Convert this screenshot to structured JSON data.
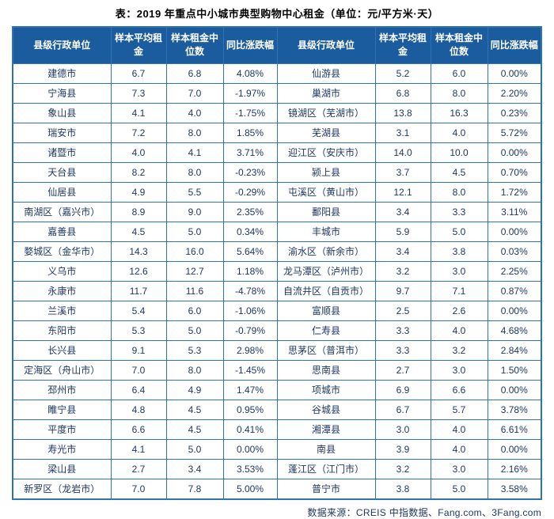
{
  "title": "表：2019 年重点中小城市典型购物中心租金（单位：元/平方米·天）",
  "source": "数据来源：CREIS 中指数据、Fang.com、3Fang.com",
  "colors": {
    "header_bg": "#1b5c9e",
    "border": "#2e74b5",
    "cell_text": "#1f3864",
    "header_text": "#ffffff"
  },
  "chart_data": {
    "type": "table",
    "title": "2019 年重点中小城市典型购物中心租金",
    "unit": "元/平方米·天",
    "columns": [
      "县级行政单位",
      "样本平均租金",
      "样本租金中位数",
      "同比涨跌幅"
    ],
    "left_rows": [
      [
        "建德市",
        "6.7",
        "6.8",
        "4.08%"
      ],
      [
        "宁海县",
        "7.3",
        "7.0",
        "-1.97%"
      ],
      [
        "象山县",
        "4.1",
        "4.0",
        "-1.75%"
      ],
      [
        "瑞安市",
        "7.2",
        "8.0",
        "1.85%"
      ],
      [
        "诸暨市",
        "4.0",
        "4.1",
        "3.71%"
      ],
      [
        "天台县",
        "8.2",
        "8.0",
        "-0.23%"
      ],
      [
        "仙居县",
        "4.9",
        "5.5",
        "-0.29%"
      ],
      [
        "南湖区（嘉兴市）",
        "8.9",
        "9.0",
        "2.35%"
      ],
      [
        "嘉善县",
        "4.5",
        "5.0",
        "0.34%"
      ],
      [
        "婺城区（金华市）",
        "14.3",
        "16.0",
        "5.64%"
      ],
      [
        "义乌市",
        "12.6",
        "12.7",
        "1.18%"
      ],
      [
        "永康市",
        "11.7",
        "11.6",
        "-4.78%"
      ],
      [
        "兰溪市",
        "5.4",
        "6.0",
        "-1.06%"
      ],
      [
        "东阳市",
        "5.3",
        "5.0",
        "-0.79%"
      ],
      [
        "长兴县",
        "9.1",
        "5.3",
        "2.98%"
      ],
      [
        "定海区（舟山市）",
        "7.0",
        "8.0",
        "-1.45%"
      ],
      [
        "邳州市",
        "6.4",
        "4.9",
        "1.47%"
      ],
      [
        "睢宁县",
        "4.8",
        "4.5",
        "0.95%"
      ],
      [
        "平度市",
        "6.6",
        "4.5",
        "0.41%"
      ],
      [
        "寿光市",
        "4.1",
        "5.0",
        "0.00%"
      ],
      [
        "梁山县",
        "2.7",
        "3.4",
        "3.53%"
      ],
      [
        "新罗区（龙岩市）",
        "7.0",
        "7.8",
        "5.00%"
      ]
    ],
    "right_rows": [
      [
        "仙游县",
        "5.2",
        "6.0",
        "0.00%"
      ],
      [
        "巢湖市",
        "6.8",
        "8.0",
        "2.20%"
      ],
      [
        "镜湖区（芜湖市）",
        "13.8",
        "16.3",
        "0.23%"
      ],
      [
        "芜湖县",
        "3.1",
        "4.0",
        "5.72%"
      ],
      [
        "迎江区（安庆市）",
        "14.0",
        "10.0",
        "0.00%"
      ],
      [
        "颍上县",
        "3.7",
        "4.5",
        "0.70%"
      ],
      [
        "屯溪区（黄山市）",
        "12.1",
        "8.0",
        "1.72%"
      ],
      [
        "鄱阳县",
        "3.4",
        "3.3",
        "3.11%"
      ],
      [
        "丰城市",
        "5.9",
        "5.0",
        "0.00%"
      ],
      [
        "渝水区（新余市）",
        "3.4",
        "3.8",
        "0.03%"
      ],
      [
        "龙马潭区（泸州市）",
        "3.2",
        "3.0",
        "2.25%"
      ],
      [
        "自流井区（自贡市）",
        "9.7",
        "7.1",
        "0.87%"
      ],
      [
        "富顺县",
        "2.5",
        "2.6",
        "0.00%"
      ],
      [
        "仁寿县",
        "3.3",
        "4.0",
        "4.68%"
      ],
      [
        "思茅区（普洱市）",
        "3.3",
        "3.2",
        "2.84%"
      ],
      [
        "思南县",
        "2.7",
        "3.0",
        "1.50%"
      ],
      [
        "项城市",
        "6.9",
        "6.6",
        "0.00%"
      ],
      [
        "谷城县",
        "6.7",
        "5.7",
        "3.78%"
      ],
      [
        "湘潭县",
        "3.0",
        "4.0",
        "6.61%"
      ],
      [
        "南县",
        "3.9",
        "4.0",
        "0.00%"
      ],
      [
        "蓬江区（江门市）",
        "3.2",
        "3.0",
        "2.16%"
      ],
      [
        "普宁市",
        "3.8",
        "5.0",
        "3.58%"
      ]
    ]
  }
}
